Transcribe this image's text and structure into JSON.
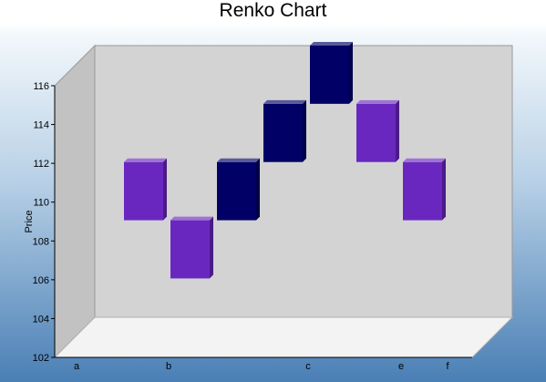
{
  "chart_data": {
    "type": "bar",
    "title": "Renko Chart",
    "ylabel": "Price",
    "xlabel": "",
    "ylim": [
      102,
      116
    ],
    "y_ticks": [
      102,
      104,
      106,
      108,
      110,
      112,
      114,
      116
    ],
    "x_tick_labels": [
      "a",
      "b",
      "c",
      "e",
      "f"
    ],
    "brick_size": 3,
    "colors": {
      "up": "#000066",
      "down": "#6a27c0"
    },
    "bricks": [
      {
        "low": 107,
        "high": 110,
        "direction": "down"
      },
      {
        "low": 104,
        "high": 107,
        "direction": "down"
      },
      {
        "low": 107,
        "high": 110,
        "direction": "up"
      },
      {
        "low": 110,
        "high": 113,
        "direction": "up"
      },
      {
        "low": 113,
        "high": 116,
        "direction": "up"
      },
      {
        "low": 110,
        "high": 113,
        "direction": "down"
      },
      {
        "low": 107,
        "high": 110,
        "direction": "down"
      }
    ],
    "grid": false
  }
}
